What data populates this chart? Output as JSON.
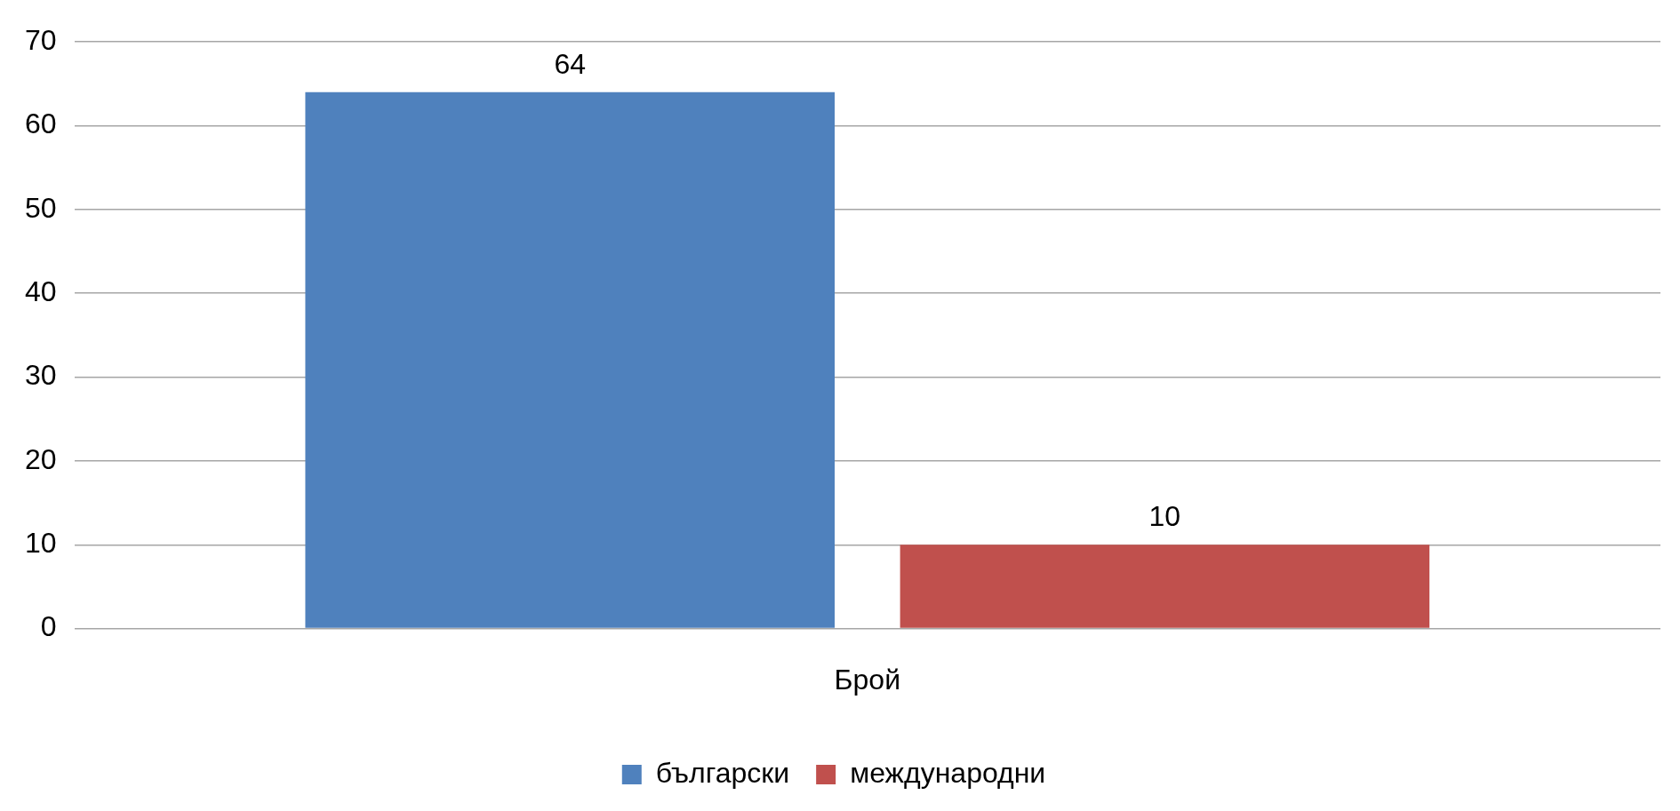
{
  "chart_data": {
    "type": "bar",
    "categories": [
      "Брой"
    ],
    "series": [
      {
        "name": "български",
        "color": "#4f81bd",
        "values": [
          64
        ]
      },
      {
        "name": "международни",
        "color": "#c0504d",
        "values": [
          10
        ]
      }
    ],
    "ylim": [
      0,
      70
    ],
    "yticks": [
      0,
      10,
      20,
      30,
      40,
      50,
      60,
      70
    ],
    "grid": "y",
    "legend": "bottom",
    "data_labels": true
  }
}
